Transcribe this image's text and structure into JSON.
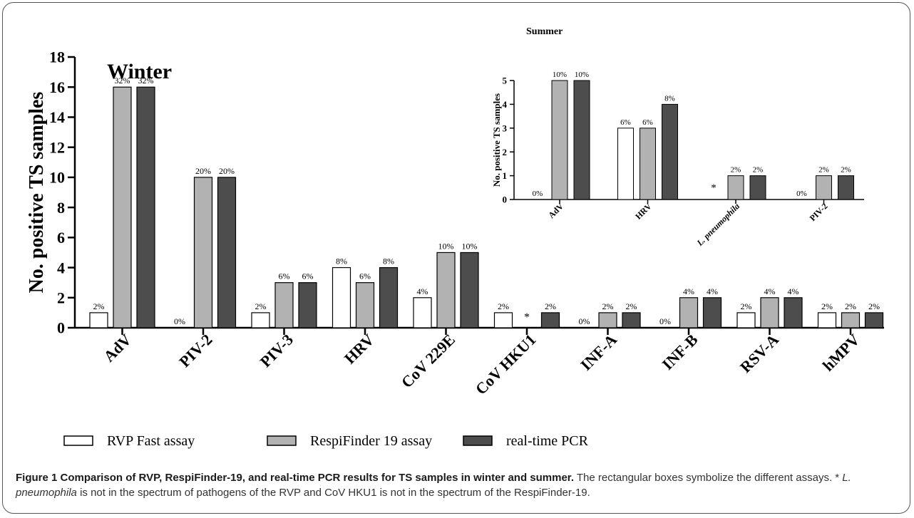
{
  "colors": {
    "rvp": "#ffffff",
    "respi": "#b2b2b2",
    "pcr": "#4d4d4d",
    "stroke": "#000000"
  },
  "legend": [
    {
      "key": "rvp",
      "label": "RVP Fast assay"
    },
    {
      "key": "respi",
      "label": "RespiFinder 19 assay"
    },
    {
      "key": "pcr",
      "label": "real-time PCR"
    }
  ],
  "caption": {
    "title": "Figure 1 Comparison of RVP, RespiFinder-19, and real-time PCR results for TS samples in winter and summer.",
    "text1": " The rectangular boxes symbolize the different assays. * ",
    "italic": "L. pneumophila",
    "text2": " is not in the spectrum of pathogens of the RVP and CoV HKU1 is not in the spectrum of the RespiFinder-19."
  },
  "chart_data": [
    {
      "type": "bar",
      "title": "Winter",
      "ylabel": "No. positive TS samples",
      "ylim": [
        0,
        18
      ],
      "yticks": [
        0,
        2,
        4,
        6,
        8,
        10,
        12,
        14,
        16,
        18
      ],
      "categories": [
        "AdV",
        "PIV-2",
        "PIV-3",
        "HRV",
        "CoV 229E",
        "CoV HKU1",
        "INF-A",
        "INF-B",
        "RSV-A",
        "hMPV"
      ],
      "series": [
        {
          "name": "RVP Fast assay",
          "key": "rvp",
          "values": [
            1,
            0,
            1,
            4,
            2,
            1,
            0,
            0,
            1,
            1
          ],
          "labels": [
            "2%",
            "0%",
            "2%",
            "8%",
            "4%",
            "2%",
            "0%",
            "0%",
            "2%",
            "2%"
          ]
        },
        {
          "name": "RespiFinder 19 assay",
          "key": "respi",
          "values": [
            16,
            10,
            3,
            3,
            5,
            null,
            1,
            2,
            2,
            1
          ],
          "labels": [
            "32%",
            "20%",
            "6%",
            "6%",
            "10%",
            "*",
            "2%",
            "4%",
            "4%",
            "2%"
          ]
        },
        {
          "name": "real-time PCR",
          "key": "pcr",
          "values": [
            16,
            10,
            3,
            4,
            5,
            1,
            1,
            2,
            2,
            1
          ],
          "labels": [
            "32%",
            "20%",
            "6%",
            "8%",
            "10%",
            "2%",
            "2%",
            "4%",
            "4%",
            "2%"
          ]
        }
      ]
    },
    {
      "type": "bar",
      "title": "Summer",
      "ylabel": "No. positive TS samples",
      "ylim": [
        0,
        5
      ],
      "yticks": [
        0,
        1,
        2,
        3,
        4,
        5
      ],
      "categories": [
        "AdV",
        "HRV",
        "L. pneumophila",
        "PIV-2"
      ],
      "series": [
        {
          "name": "RVP Fast assay",
          "key": "rvp",
          "values": [
            0,
            3,
            null,
            0
          ],
          "labels": [
            "0%",
            "6%",
            "*",
            "0%"
          ]
        },
        {
          "name": "RespiFinder 19 assay",
          "key": "respi",
          "values": [
            5,
            3,
            1,
            1
          ],
          "labels": [
            "10%",
            "6%",
            "2%",
            "2%"
          ]
        },
        {
          "name": "real-time PCR",
          "key": "pcr",
          "values": [
            5,
            4,
            1,
            1
          ],
          "labels": [
            "10%",
            "8%",
            "2%",
            "2%"
          ]
        }
      ]
    }
  ]
}
